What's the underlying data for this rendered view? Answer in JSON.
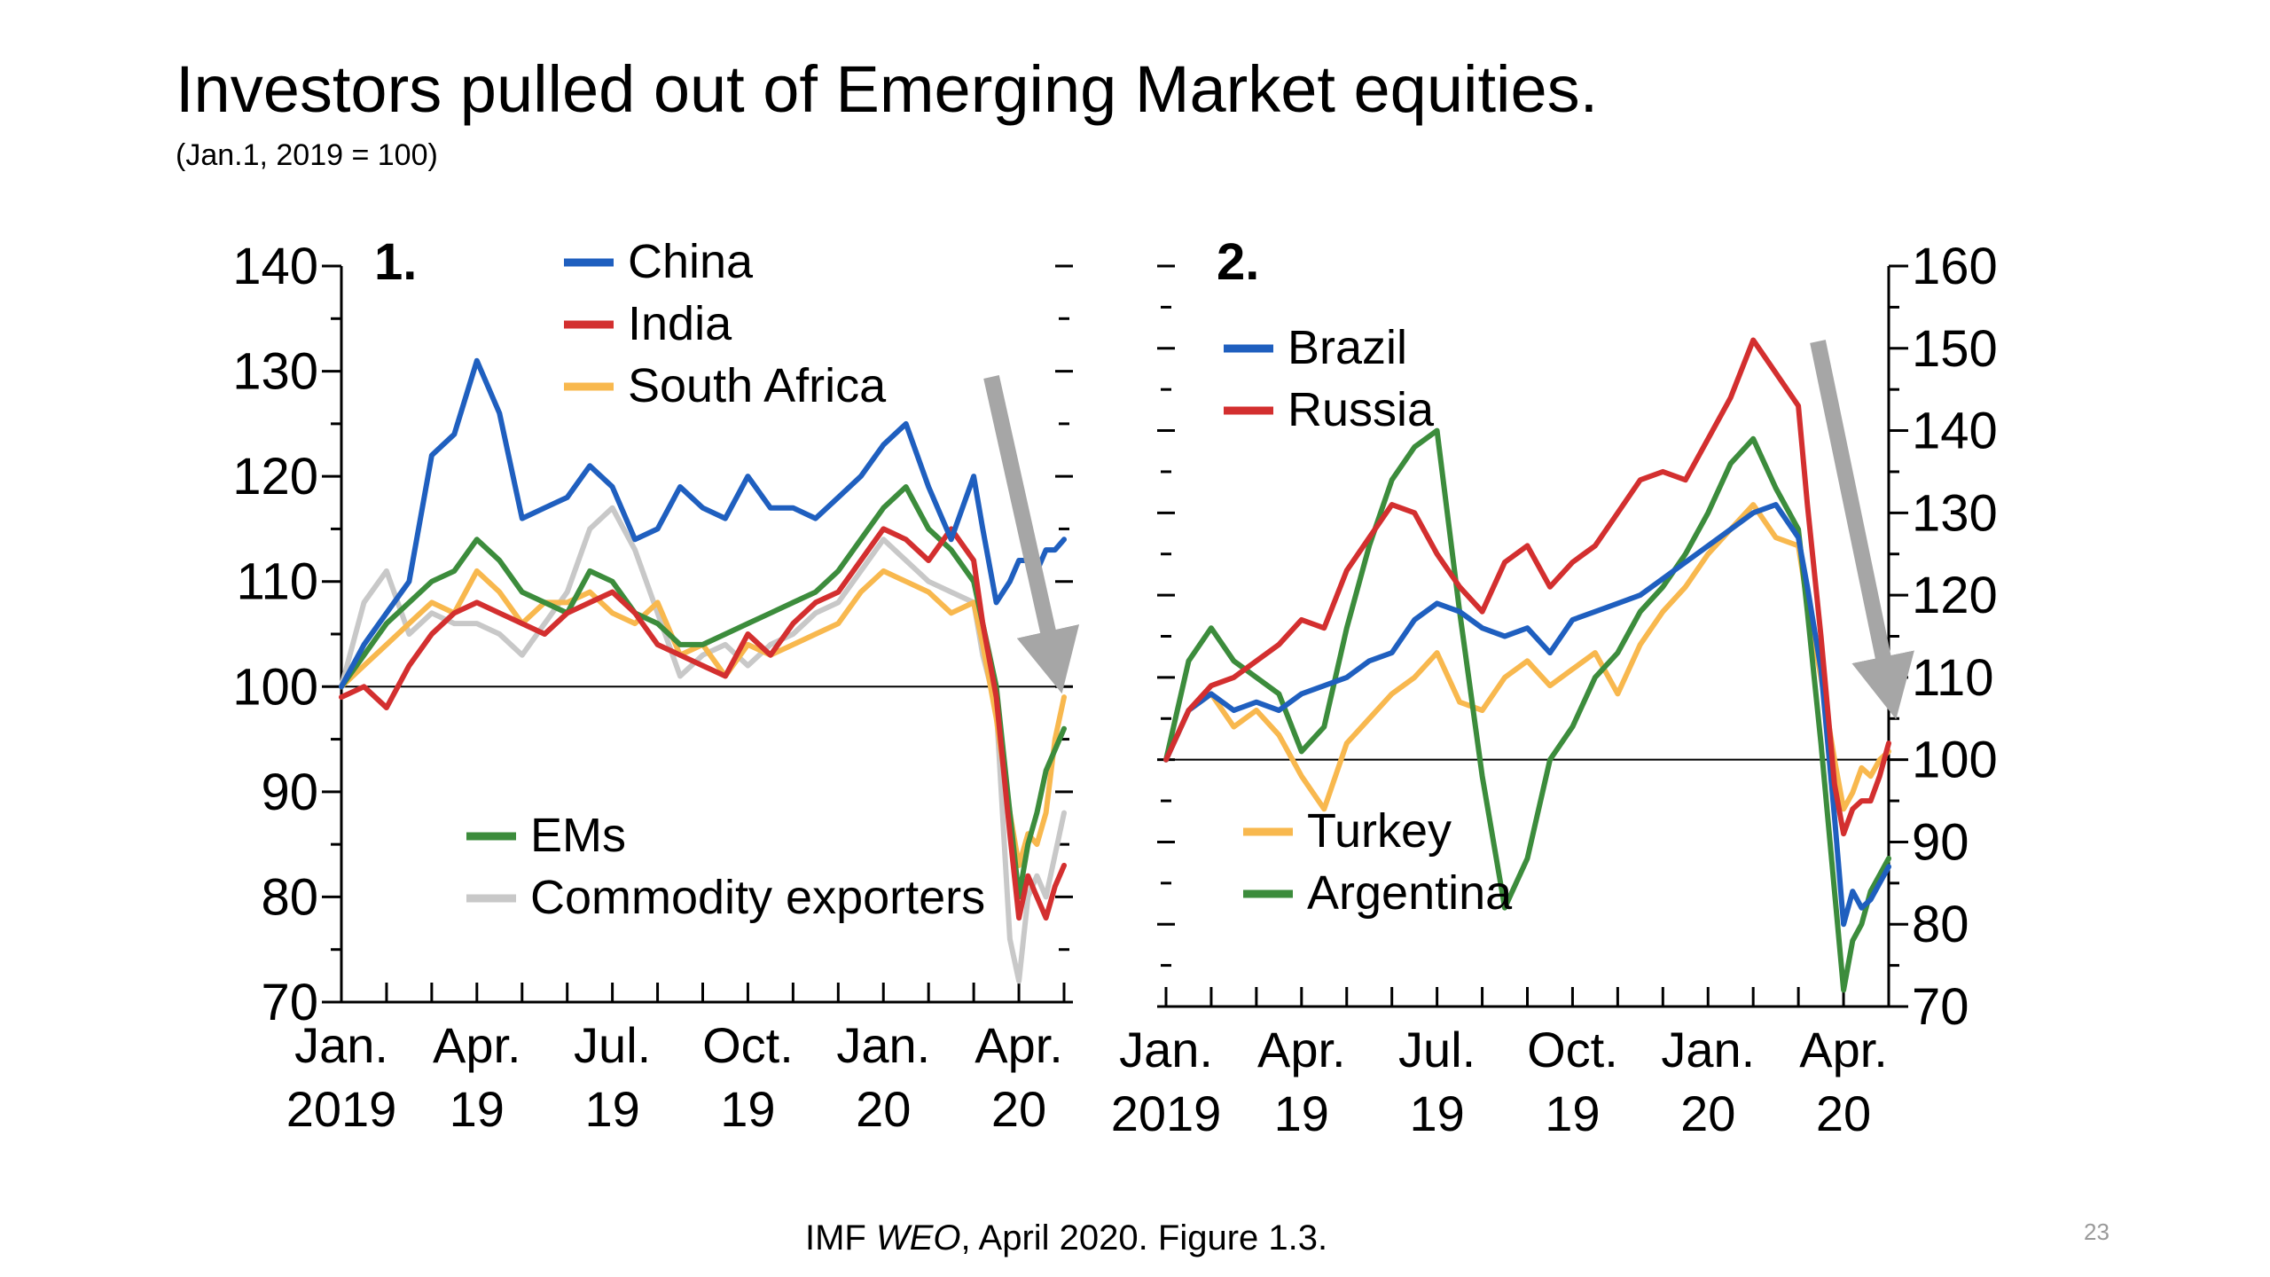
{
  "slide": {
    "title": "Investors pulled out of Emerging Market equities.",
    "subtitle": "(Jan.1, 2019 = 100)",
    "source_prefix": "IMF ",
    "source_italic": "WEO",
    "source_suffix": ", April 2020. Figure 1.3.",
    "slide_number": "23"
  },
  "chart_data": [
    {
      "type": "line",
      "panel_label": "1.",
      "y_axis": "left",
      "ylim": [
        70,
        140
      ],
      "yticks": [
        70,
        80,
        90,
        100,
        110,
        120,
        130,
        140
      ],
      "baseline": 100,
      "x_range": [
        0,
        16
      ],
      "x_tick_labels": [
        {
          "x": 0,
          "label": [
            "Jan.",
            "2019"
          ]
        },
        {
          "x": 3,
          "label": [
            "Apr.",
            "19"
          ]
        },
        {
          "x": 6,
          "label": [
            "Jul.",
            "19"
          ]
        },
        {
          "x": 9,
          "label": [
            "Oct.",
            "19"
          ]
        },
        {
          "x": 12,
          "label": [
            "Jan.",
            "20"
          ]
        },
        {
          "x": 15,
          "label": [
            "Apr.",
            "20"
          ]
        }
      ],
      "legend_top": [
        "China",
        "India",
        "South Africa"
      ],
      "legend_bottom": [
        "EMs",
        "Commodity exporters"
      ],
      "annotation": "downward arrow near Apr. 2020",
      "series": [
        {
          "name": "Commodity exporters",
          "color": "#c8c8c8",
          "x": [
            0,
            0.5,
            1,
            1.5,
            2,
            2.5,
            3,
            3.5,
            4,
            4.5,
            5,
            5.5,
            6,
            6.5,
            7,
            7.5,
            8,
            8.5,
            9,
            9.5,
            10,
            10.5,
            11,
            11.5,
            12,
            12.5,
            13,
            13.5,
            14,
            14.2,
            14.5,
            14.8,
            15,
            15.2,
            15.4,
            15.6,
            15.8,
            16
          ],
          "values": [
            100,
            108,
            111,
            105,
            107,
            106,
            106,
            105,
            103,
            106,
            109,
            115,
            117,
            113,
            107,
            101,
            103,
            104,
            102,
            104,
            105,
            107,
            108,
            111,
            114,
            112,
            110,
            109,
            108,
            103,
            98,
            76,
            72,
            80,
            82,
            80,
            84,
            88
          ]
        },
        {
          "name": "South Africa",
          "color": "#f8b84e",
          "x": [
            0,
            0.5,
            1,
            1.5,
            2,
            2.5,
            3,
            3.5,
            4,
            4.5,
            5,
            5.5,
            6,
            6.5,
            7,
            7.5,
            8,
            8.5,
            9,
            9.5,
            10,
            10.5,
            11,
            11.5,
            12,
            12.5,
            13,
            13.5,
            14,
            14.2,
            14.5,
            14.8,
            15,
            15.2,
            15.4,
            15.6,
            15.8,
            16
          ],
          "values": [
            100,
            102,
            104,
            106,
            108,
            107,
            111,
            109,
            106,
            108,
            108,
            109,
            107,
            106,
            108,
            103,
            104,
            101,
            104,
            103,
            104,
            105,
            106,
            109,
            111,
            110,
            109,
            107,
            108,
            104,
            97,
            88,
            83,
            86,
            85,
            88,
            95,
            99
          ]
        },
        {
          "name": "EMs",
          "color": "#3c8c3c",
          "x": [
            0,
            0.5,
            1,
            1.5,
            2,
            2.5,
            3,
            3.5,
            4,
            4.5,
            5,
            5.5,
            6,
            6.5,
            7,
            7.5,
            8,
            8.5,
            9,
            9.5,
            10,
            10.5,
            11,
            11.5,
            12,
            12.5,
            13,
            13.5,
            14,
            14.2,
            14.5,
            14.8,
            15,
            15.2,
            15.4,
            15.6,
            15.8,
            16
          ],
          "values": [
            100,
            103,
            106,
            108,
            110,
            111,
            114,
            112,
            109,
            108,
            107,
            111,
            110,
            107,
            106,
            104,
            104,
            105,
            106,
            107,
            108,
            109,
            111,
            114,
            117,
            119,
            115,
            113,
            110,
            106,
            100,
            88,
            80,
            85,
            88,
            92,
            94,
            96
          ]
        },
        {
          "name": "India",
          "color": "#d32f2f",
          "x": [
            0,
            0.5,
            1,
            1.5,
            2,
            2.5,
            3,
            3.5,
            4,
            4.5,
            5,
            5.5,
            6,
            6.5,
            7,
            7.5,
            8,
            8.5,
            9,
            9.5,
            10,
            10.5,
            11,
            11.5,
            12,
            12.5,
            13,
            13.5,
            14,
            14.2,
            14.5,
            14.8,
            15,
            15.2,
            15.4,
            15.6,
            15.8,
            16
          ],
          "values": [
            99,
            100,
            98,
            102,
            105,
            107,
            108,
            107,
            106,
            105,
            107,
            108,
            109,
            107,
            104,
            103,
            102,
            101,
            105,
            103,
            106,
            108,
            109,
            112,
            115,
            114,
            112,
            115,
            112,
            106,
            99,
            86,
            78,
            82,
            80,
            78,
            81,
            83
          ]
        },
        {
          "name": "China",
          "color": "#1f5fbf",
          "x": [
            0,
            0.5,
            1,
            1.5,
            2,
            2.5,
            3,
            3.5,
            4,
            4.5,
            5,
            5.5,
            6,
            6.5,
            7,
            7.5,
            8,
            8.5,
            9,
            9.5,
            10,
            10.5,
            11,
            11.5,
            12,
            12.5,
            13,
            13.5,
            14,
            14.2,
            14.5,
            14.8,
            15,
            15.2,
            15.4,
            15.6,
            15.8,
            16
          ],
          "values": [
            100,
            104,
            107,
            110,
            122,
            124,
            131,
            126,
            116,
            117,
            118,
            121,
            119,
            114,
            115,
            119,
            117,
            116,
            120,
            117,
            117,
            116,
            118,
            120,
            123,
            125,
            119,
            114,
            120,
            115,
            108,
            110,
            112,
            112,
            111,
            113,
            113,
            114
          ]
        }
      ]
    },
    {
      "type": "line",
      "panel_label": "2.",
      "y_axis": "right",
      "ylim": [
        70,
        160
      ],
      "yticks": [
        70,
        80,
        90,
        100,
        110,
        120,
        130,
        140,
        150,
        160
      ],
      "baseline": 100,
      "x_range": [
        0,
        16
      ],
      "x_tick_labels": [
        {
          "x": 0,
          "label": [
            "Jan.",
            "2019"
          ]
        },
        {
          "x": 3,
          "label": [
            "Apr.",
            "19"
          ]
        },
        {
          "x": 6,
          "label": [
            "Jul.",
            "19"
          ]
        },
        {
          "x": 9,
          "label": [
            "Oct.",
            "19"
          ]
        },
        {
          "x": 12,
          "label": [
            "Jan.",
            "20"
          ]
        },
        {
          "x": 15,
          "label": [
            "Apr.",
            "20"
          ]
        }
      ],
      "legend_top": [
        "Brazil",
        "Russia"
      ],
      "legend_bottom": [
        "Turkey",
        "Argentina"
      ],
      "annotation": "downward arrow near Apr. 2020",
      "series": [
        {
          "name": "Turkey",
          "color": "#f8b84e",
          "x": [
            0,
            0.5,
            1,
            1.5,
            2,
            2.5,
            3,
            3.5,
            4,
            4.5,
            5,
            5.5,
            6,
            6.5,
            7,
            7.5,
            8,
            8.5,
            9,
            9.5,
            10,
            10.5,
            11,
            11.5,
            12,
            12.5,
            13,
            13.5,
            14,
            14.2,
            14.5,
            14.8,
            15,
            15.2,
            15.4,
            15.6,
            15.8,
            16
          ],
          "values": [
            100,
            106,
            108,
            104,
            106,
            103,
            98,
            94,
            102,
            105,
            108,
            110,
            113,
            107,
            106,
            110,
            112,
            109,
            111,
            113,
            108,
            114,
            118,
            121,
            125,
            128,
            131,
            127,
            126,
            119,
            110,
            100,
            94,
            96,
            99,
            98,
            100,
            101
          ]
        },
        {
          "name": "Argentina",
          "color": "#3c8c3c",
          "x": [
            0,
            0.5,
            1,
            1.5,
            2,
            2.5,
            3,
            3.5,
            4,
            4.5,
            5,
            5.5,
            6,
            6.5,
            7,
            7.5,
            8,
            8.5,
            9,
            9.5,
            10,
            10.5,
            11,
            11.5,
            12,
            12.5,
            13,
            13.5,
            14,
            14.2,
            14.5,
            14.8,
            15,
            15.2,
            15.4,
            15.6,
            15.8,
            16
          ],
          "values": [
            100,
            112,
            116,
            112,
            110,
            108,
            101,
            104,
            116,
            126,
            134,
            138,
            140,
            118,
            98,
            82,
            88,
            100,
            104,
            110,
            113,
            118,
            121,
            125,
            130,
            136,
            139,
            133,
            128,
            118,
            102,
            84,
            72,
            78,
            80,
            84,
            86,
            88
          ]
        },
        {
          "name": "Brazil",
          "color": "#1f5fbf",
          "x": [
            0,
            0.5,
            1,
            1.5,
            2,
            2.5,
            3,
            3.5,
            4,
            4.5,
            5,
            5.5,
            6,
            6.5,
            7,
            7.5,
            8,
            8.5,
            9,
            9.5,
            10,
            10.5,
            11,
            11.5,
            12,
            12.5,
            13,
            13.5,
            14,
            14.2,
            14.5,
            14.8,
            15,
            15.2,
            15.4,
            15.6,
            15.8,
            16
          ],
          "values": [
            100,
            106,
            108,
            106,
            107,
            106,
            108,
            109,
            110,
            112,
            113,
            117,
            119,
            118,
            116,
            115,
            116,
            113,
            117,
            118,
            119,
            120,
            122,
            124,
            126,
            128,
            130,
            131,
            127,
            121,
            111,
            93,
            80,
            84,
            82,
            83,
            85,
            87
          ]
        },
        {
          "name": "Russia",
          "color": "#d32f2f",
          "x": [
            0,
            0.5,
            1,
            1.5,
            2,
            2.5,
            3,
            3.5,
            4,
            4.5,
            5,
            5.5,
            6,
            6.5,
            7,
            7.5,
            8,
            8.5,
            9,
            9.5,
            10,
            10.5,
            11,
            11.5,
            12,
            12.5,
            13,
            13.5,
            14,
            14.2,
            14.5,
            14.8,
            15,
            15.2,
            15.4,
            15.6,
            15.8,
            16
          ],
          "values": [
            100,
            106,
            109,
            110,
            112,
            114,
            117,
            116,
            123,
            127,
            131,
            130,
            125,
            121,
            118,
            124,
            126,
            121,
            124,
            126,
            130,
            134,
            135,
            134,
            139,
            144,
            151,
            147,
            143,
            131,
            115,
            97,
            91,
            94,
            95,
            95,
            98,
            102
          ]
        }
      ]
    }
  ]
}
